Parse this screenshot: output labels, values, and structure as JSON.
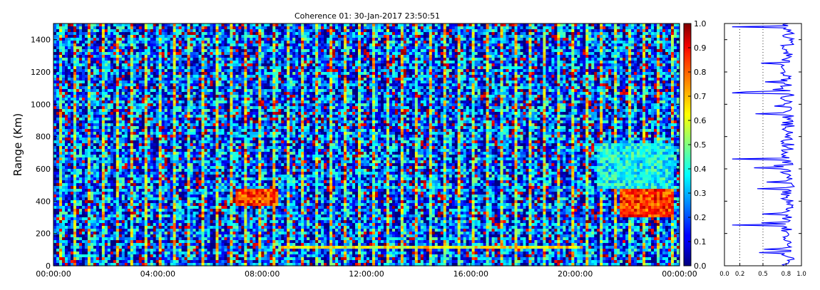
{
  "chart_data": [
    {
      "type": "heatmap",
      "title": "Coherence 01: 30-Jan-2017 23:50:51",
      "xlabel": "",
      "ylabel": "Range (Km)",
      "xlim": [
        "00:00:00",
        "24:00:00"
      ],
      "ylim": [
        0,
        1500
      ],
      "x_ticks": [
        "00:00:00",
        "04:00:00",
        "08:00:00",
        "12:00:00",
        "16:00:00",
        "20:00:00",
        "00:00:00"
      ],
      "y_ticks": [
        0,
        200,
        400,
        600,
        800,
        1000,
        1200,
        1400
      ],
      "colormap": "jet",
      "value_range": [
        0.0,
        1.0
      ],
      "colorbar_ticks": [
        "0.0",
        "0.1",
        "0.2",
        "0.3",
        "0.4",
        "0.5",
        "0.6",
        "0.7",
        "0.8",
        "0.9",
        "1.0"
      ],
      "features": [
        {
          "desc": "high-coherence echo layer",
          "time_start": "07:00:00",
          "time_end": "08:40:00",
          "range_min": 370,
          "range_max": 470,
          "value": 0.95
        },
        {
          "desc": "high-coherence echo patch",
          "time_start": "21:40:00",
          "time_end": "23:50:00",
          "range_min": 300,
          "range_max": 480,
          "value": 0.95
        },
        {
          "desc": "echo region",
          "time_start": "20:50:00",
          "time_end": "23:50:00",
          "range_min": 480,
          "range_max": 760,
          "value": 0.5
        },
        {
          "desc": "low range band",
          "time_start": "08:40:00",
          "time_end": "20:20:00",
          "range_min": 100,
          "range_max": 130,
          "value": 0.75
        }
      ]
    },
    {
      "type": "line",
      "xlim": [
        0.0,
        1.0
      ],
      "x_ticks": [
        "0.0",
        "0.2",
        "0.5",
        "0.8",
        "1.0"
      ],
      "ylim": [
        0,
        1500
      ],
      "reference_lines": [
        0.2,
        0.5
      ],
      "line_color": "#0000ff"
    }
  ]
}
